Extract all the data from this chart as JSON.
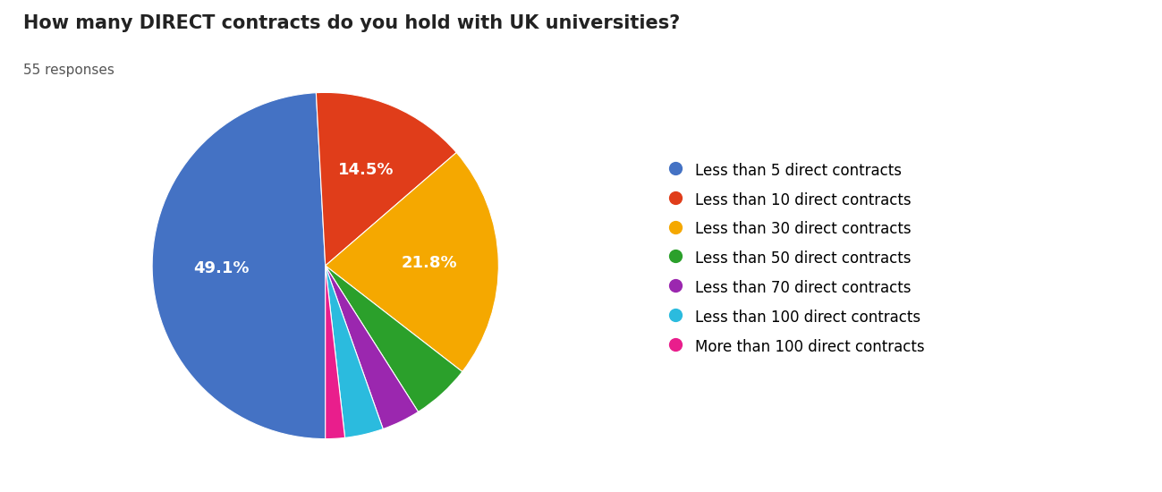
{
  "title": "How many DIRECT contracts do you hold with UK universities?",
  "subtitle": "55 responses",
  "labels": [
    "Less than 5 direct contracts",
    "Less than 10 direct contracts",
    "Less than 30 direct contracts",
    "Less than 50 direct contracts",
    "Less than 70 direct contracts",
    "Less than 100 direct contracts",
    "More than 100 direct contracts"
  ],
  "values": [
    49.1,
    14.5,
    21.8,
    5.5,
    3.6,
    3.6,
    1.8
  ],
  "colors": [
    "#4472C4",
    "#E03D1A",
    "#F5A800",
    "#2BA02B",
    "#9B27AF",
    "#2BBBDE",
    "#E91E8C"
  ],
  "autopct_labels": [
    "49.1%",
    "14.5%",
    "21.8%",
    "",
    "",
    "",
    ""
  ],
  "title_fontsize": 15,
  "subtitle_fontsize": 11,
  "legend_fontsize": 12,
  "background_color": "#ffffff",
  "startangle": 270
}
